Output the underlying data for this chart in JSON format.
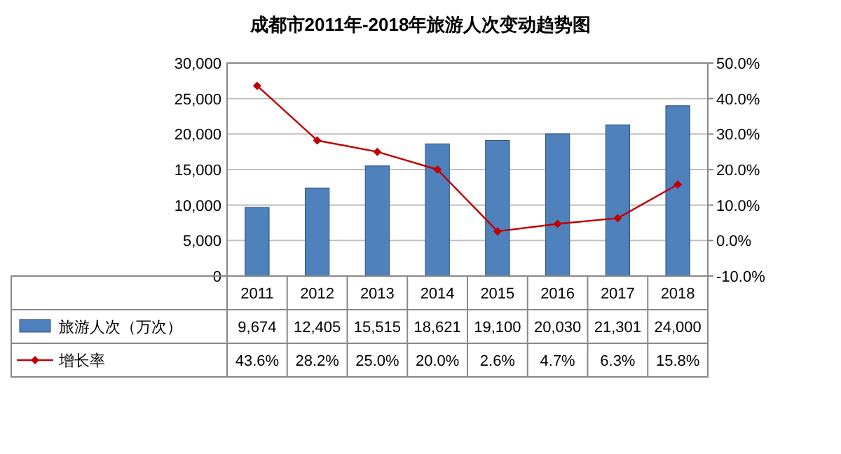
{
  "chart_data": {
    "type": "bar",
    "title": "成都市2011年-2018年旅游人次变动趋势图",
    "categories": [
      "2011",
      "2012",
      "2013",
      "2014",
      "2015",
      "2016",
      "2017",
      "2018"
    ],
    "series": [
      {
        "name": "旅游人次（万次）",
        "color": "#4f81bd",
        "values": [
          9674,
          12405,
          15515,
          18621,
          19100,
          20030,
          21301,
          24000
        ],
        "value_labels": [
          "9,674",
          "12,405",
          "15,515",
          "18,621",
          "19,100",
          "20,030",
          "21,301",
          "24,000"
        ]
      },
      {
        "name": "增长率",
        "type": "line",
        "axis": "y2",
        "color": "#c00000",
        "marker": "diamond",
        "values": [
          43.6,
          28.2,
          25.0,
          20.0,
          2.6,
          4.7,
          6.3,
          15.8
        ],
        "value_labels": [
          "43.6%",
          "28.2%",
          "25.0%",
          "20.0%",
          "2.6%",
          "4.7%",
          "6.3%",
          "15.8%"
        ]
      }
    ],
    "ylim": [
      0,
      30000
    ],
    "yticks": [
      0,
      {
        "value": 5000,
        "label": "5,000"
      },
      {
        "value": 10000,
        "label": "10,000"
      },
      {
        "value": 15000,
        "label": "15,000"
      },
      {
        "value": 20000,
        "label": "20,000"
      },
      {
        "value": 25000,
        "label": "25,000"
      },
      {
        "value": 30000,
        "label": "30,000"
      }
    ],
    "y2lim": [
      -10,
      50
    ],
    "y2ticks": [
      {
        "value": -10,
        "label": "-10.0%"
      },
      {
        "value": 0,
        "label": "0.0%"
      },
      {
        "value": 10,
        "label": "10.0%"
      },
      {
        "value": 20,
        "label": "20.0%"
      },
      {
        "value": 30,
        "label": "30.0%"
      },
      {
        "value": 40,
        "label": "40.0%"
      },
      {
        "value": 50,
        "label": "50.0%"
      }
    ],
    "grid": "y",
    "legend": "bottom"
  }
}
